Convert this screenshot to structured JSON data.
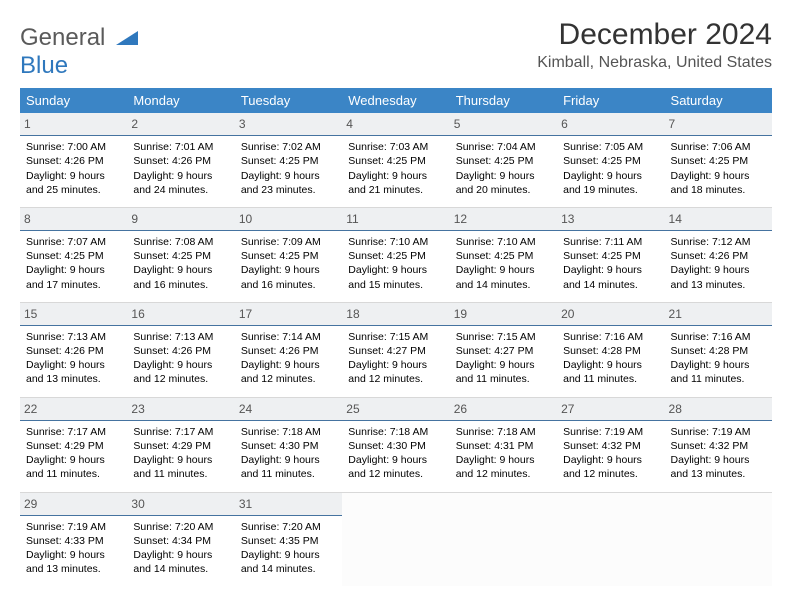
{
  "logo": {
    "line1": "General",
    "line2": "Blue"
  },
  "title": "December 2024",
  "location": "Kimball, Nebraska, United States",
  "headers": [
    "Sunday",
    "Monday",
    "Tuesday",
    "Wednesday",
    "Thursday",
    "Friday",
    "Saturday"
  ],
  "colors": {
    "header_bg": "#3b85c6",
    "header_text": "#ffffff",
    "daynum_bg": "#eef0f2",
    "daynum_border": "#4573a0",
    "logo_gray": "#5a5a5a",
    "logo_blue": "#2f78bd"
  },
  "weeks": [
    [
      {
        "n": "1",
        "sr": "7:00 AM",
        "ss": "4:26 PM",
        "dl": "9 hours and 25 minutes."
      },
      {
        "n": "2",
        "sr": "7:01 AM",
        "ss": "4:26 PM",
        "dl": "9 hours and 24 minutes."
      },
      {
        "n": "3",
        "sr": "7:02 AM",
        "ss": "4:25 PM",
        "dl": "9 hours and 23 minutes."
      },
      {
        "n": "4",
        "sr": "7:03 AM",
        "ss": "4:25 PM",
        "dl": "9 hours and 21 minutes."
      },
      {
        "n": "5",
        "sr": "7:04 AM",
        "ss": "4:25 PM",
        "dl": "9 hours and 20 minutes."
      },
      {
        "n": "6",
        "sr": "7:05 AM",
        "ss": "4:25 PM",
        "dl": "9 hours and 19 minutes."
      },
      {
        "n": "7",
        "sr": "7:06 AM",
        "ss": "4:25 PM",
        "dl": "9 hours and 18 minutes."
      }
    ],
    [
      {
        "n": "8",
        "sr": "7:07 AM",
        "ss": "4:25 PM",
        "dl": "9 hours and 17 minutes."
      },
      {
        "n": "9",
        "sr": "7:08 AM",
        "ss": "4:25 PM",
        "dl": "9 hours and 16 minutes."
      },
      {
        "n": "10",
        "sr": "7:09 AM",
        "ss": "4:25 PM",
        "dl": "9 hours and 16 minutes."
      },
      {
        "n": "11",
        "sr": "7:10 AM",
        "ss": "4:25 PM",
        "dl": "9 hours and 15 minutes."
      },
      {
        "n": "12",
        "sr": "7:10 AM",
        "ss": "4:25 PM",
        "dl": "9 hours and 14 minutes."
      },
      {
        "n": "13",
        "sr": "7:11 AM",
        "ss": "4:25 PM",
        "dl": "9 hours and 14 minutes."
      },
      {
        "n": "14",
        "sr": "7:12 AM",
        "ss": "4:26 PM",
        "dl": "9 hours and 13 minutes."
      }
    ],
    [
      {
        "n": "15",
        "sr": "7:13 AM",
        "ss": "4:26 PM",
        "dl": "9 hours and 13 minutes."
      },
      {
        "n": "16",
        "sr": "7:13 AM",
        "ss": "4:26 PM",
        "dl": "9 hours and 12 minutes."
      },
      {
        "n": "17",
        "sr": "7:14 AM",
        "ss": "4:26 PM",
        "dl": "9 hours and 12 minutes."
      },
      {
        "n": "18",
        "sr": "7:15 AM",
        "ss": "4:27 PM",
        "dl": "9 hours and 12 minutes."
      },
      {
        "n": "19",
        "sr": "7:15 AM",
        "ss": "4:27 PM",
        "dl": "9 hours and 11 minutes."
      },
      {
        "n": "20",
        "sr": "7:16 AM",
        "ss": "4:28 PM",
        "dl": "9 hours and 11 minutes."
      },
      {
        "n": "21",
        "sr": "7:16 AM",
        "ss": "4:28 PM",
        "dl": "9 hours and 11 minutes."
      }
    ],
    [
      {
        "n": "22",
        "sr": "7:17 AM",
        "ss": "4:29 PM",
        "dl": "9 hours and 11 minutes."
      },
      {
        "n": "23",
        "sr": "7:17 AM",
        "ss": "4:29 PM",
        "dl": "9 hours and 11 minutes."
      },
      {
        "n": "24",
        "sr": "7:18 AM",
        "ss": "4:30 PM",
        "dl": "9 hours and 11 minutes."
      },
      {
        "n": "25",
        "sr": "7:18 AM",
        "ss": "4:30 PM",
        "dl": "9 hours and 12 minutes."
      },
      {
        "n": "26",
        "sr": "7:18 AM",
        "ss": "4:31 PM",
        "dl": "9 hours and 12 minutes."
      },
      {
        "n": "27",
        "sr": "7:19 AM",
        "ss": "4:32 PM",
        "dl": "9 hours and 12 minutes."
      },
      {
        "n": "28",
        "sr": "7:19 AM",
        "ss": "4:32 PM",
        "dl": "9 hours and 13 minutes."
      }
    ],
    [
      {
        "n": "29",
        "sr": "7:19 AM",
        "ss": "4:33 PM",
        "dl": "9 hours and 13 minutes."
      },
      {
        "n": "30",
        "sr": "7:20 AM",
        "ss": "4:34 PM",
        "dl": "9 hours and 14 minutes."
      },
      {
        "n": "31",
        "sr": "7:20 AM",
        "ss": "4:35 PM",
        "dl": "9 hours and 14 minutes."
      },
      null,
      null,
      null,
      null
    ]
  ],
  "labels": {
    "sunrise": "Sunrise: ",
    "sunset": "Sunset: ",
    "daylight": "Daylight: "
  }
}
